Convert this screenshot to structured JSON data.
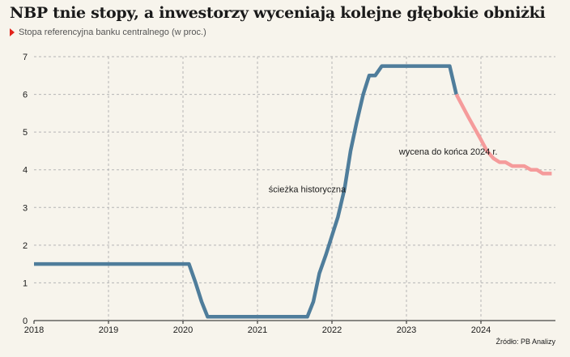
{
  "title": "NBP tnie stopy, a inwestorzy wyceniają kolejne głębokie obniżki",
  "subtitle": "Stopa referencyjna banku centralnego (w proc.)",
  "source": "Źródło: PB Analizy",
  "colors": {
    "historical": "#4f7d9b",
    "forecast": "#f59b9b",
    "grid": "#b5b5b5",
    "subtitle_marker": "#e2231a"
  },
  "chart_data": {
    "type": "line",
    "xlim": [
      2018,
      2025
    ],
    "ylim": [
      0,
      7
    ],
    "x_ticks": [
      "2018",
      "2019",
      "2020",
      "2021",
      "2022",
      "2023",
      "2024"
    ],
    "y_ticks": [
      "0",
      "1",
      "2",
      "3",
      "4",
      "5",
      "6",
      "7"
    ],
    "grid": true,
    "annotations": [
      {
        "text": "ścieżka historyczna",
        "x": 2021.15,
        "y": 3.4
      },
      {
        "text": "wycena do końca 2024 r.",
        "x": 2022.9,
        "y": 4.4
      }
    ],
    "series": [
      {
        "key": "historical",
        "x": [
          2018.0,
          2020.08,
          2020.17,
          2020.25,
          2020.33,
          2021.08,
          2021.67,
          2021.75,
          2021.83,
          2021.92,
          2022.0,
          2022.08,
          2022.17,
          2022.25,
          2022.33,
          2022.42,
          2022.5,
          2022.58,
          2022.67,
          2023.58,
          2023.67
        ],
        "y": [
          1.5,
          1.5,
          1.0,
          0.5,
          0.1,
          0.1,
          0.1,
          0.5,
          1.25,
          1.75,
          2.25,
          2.75,
          3.5,
          4.5,
          5.25,
          6.0,
          6.5,
          6.5,
          6.75,
          6.75,
          6.0
        ]
      },
      {
        "key": "forecast",
        "x": [
          2023.67,
          2023.83,
          2024.0,
          2024.08,
          2024.17,
          2024.25,
          2024.33,
          2024.42,
          2024.58,
          2024.67,
          2024.75,
          2024.83,
          2024.95
        ],
        "y": [
          6.0,
          5.4,
          4.8,
          4.5,
          4.3,
          4.2,
          4.2,
          4.1,
          4.1,
          4.0,
          4.0,
          3.9,
          3.9
        ]
      }
    ]
  }
}
